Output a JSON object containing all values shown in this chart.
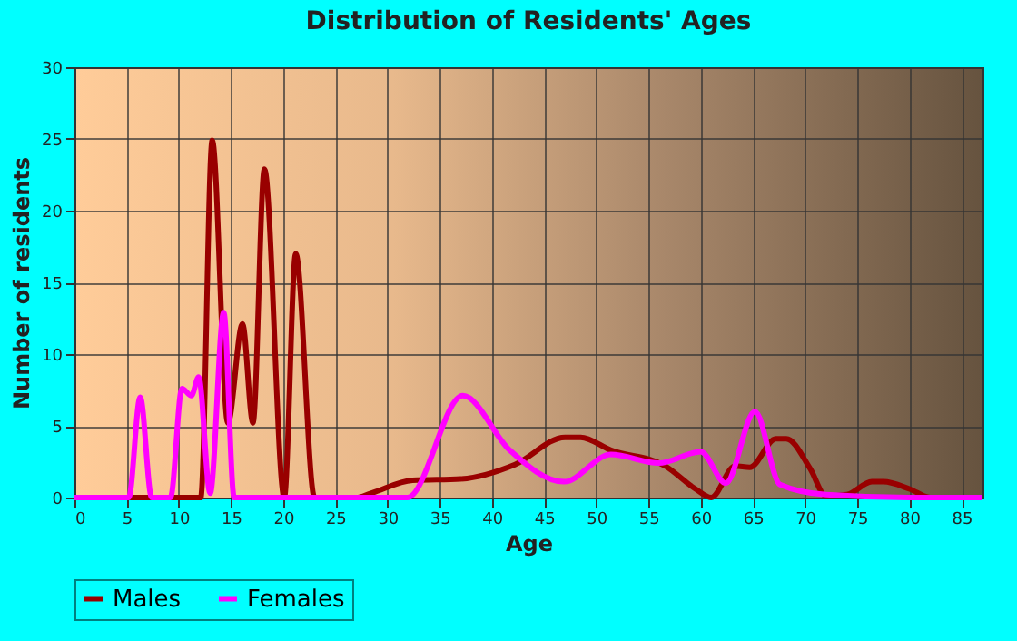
{
  "chart_data": {
    "type": "line",
    "title": "Distribution of Residents' Ages",
    "xlabel": "Age",
    "ylabel": "Number of residents",
    "xlim": [
      0,
      87
    ],
    "xticks": [
      0,
      5,
      10,
      15,
      20,
      25,
      30,
      35,
      40,
      45,
      50,
      55,
      60,
      65,
      70,
      75,
      80,
      85
    ],
    "ylim": [
      0,
      30
    ],
    "yticks": [
      0,
      5,
      10,
      15,
      20,
      25,
      30
    ],
    "grid": true,
    "legend": "bottom",
    "marker": "none",
    "line_style": "solid",
    "series": [
      {
        "name": "Males",
        "color": "#990000",
        "x": [
          0,
          5,
          10,
          12.1,
          13.2,
          14.7,
          16.1,
          17.1,
          18.2,
          20.1,
          21.2,
          23,
          27,
          28.4,
          32.4,
          37,
          42.2,
          47,
          48.5,
          51.4,
          56.6,
          59.5,
          61,
          63.3,
          64.7,
          67.2,
          68.2,
          70.5,
          72,
          74,
          76.4,
          77.5,
          80,
          82,
          85,
          87
        ],
        "values": [
          0,
          0,
          0,
          0,
          24.9,
          5.2,
          12.1,
          5.2,
          22.9,
          0,
          17,
          0,
          0,
          0.3,
          1.2,
          1.3,
          2.3,
          4.2,
          4.2,
          3.3,
          2.2,
          0.6,
          0,
          2.2,
          2.1,
          4.1,
          4.1,
          2,
          0.1,
          0.2,
          1.1,
          1.1,
          0.6,
          0,
          0,
          0
        ]
      },
      {
        "name": "Females",
        "color": "#ff00ff",
        "x": [
          0,
          5.2,
          6.3,
          7.4,
          9.2,
          10.3,
          11.2,
          11.9,
          13,
          14.3,
          15.3,
          20,
          25,
          31.9,
          37.2,
          41.7,
          46.9,
          51.4,
          56,
          60,
          62.4,
          65.2,
          67.6,
          72,
          80,
          87
        ],
        "values": [
          0,
          0,
          7,
          0,
          0,
          7.6,
          7.1,
          8.4,
          0.3,
          12.9,
          0,
          0,
          0,
          0,
          7.1,
          3.3,
          1.1,
          3,
          2.4,
          3.2,
          1,
          6,
          0.9,
          0.2,
          0,
          0
        ]
      }
    ]
  }
}
